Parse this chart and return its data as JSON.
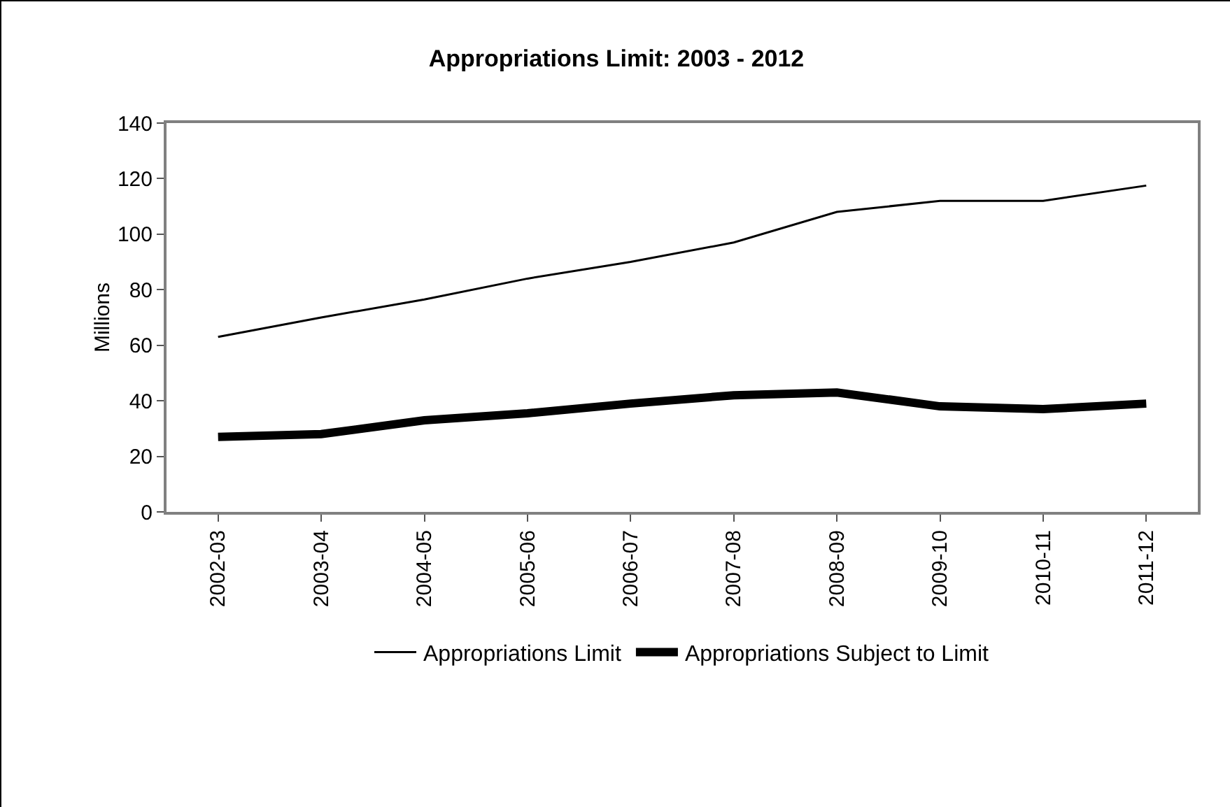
{
  "chart_data": {
    "type": "line",
    "title": "Appropriations Limit: 2003 - 2012",
    "ylabel": "Millions",
    "categories": [
      "2002-03",
      "2003-04",
      "2004-05",
      "2005-06",
      "2006-07",
      "2007-08",
      "2008-09",
      "2009-10",
      "2010-11",
      "2011-12"
    ],
    "series": [
      {
        "name": "Appropriations Limit",
        "color": "#000000",
        "values": [
          63,
          70,
          76.5,
          84,
          90,
          97,
          108,
          112,
          112,
          117.5
        ]
      },
      {
        "name": "Appropriations Subject to Limit",
        "color": "#000000",
        "values": [
          27,
          28,
          33,
          35.5,
          39,
          42,
          43,
          38,
          37,
          39
        ]
      }
    ],
    "ylim": [
      0,
      140
    ],
    "yticks": [
      0,
      20,
      40,
      60,
      80,
      100,
      120,
      140
    ],
    "grid": false,
    "legend": "bottom",
    "marker": "none",
    "line_style": "solid"
  }
}
